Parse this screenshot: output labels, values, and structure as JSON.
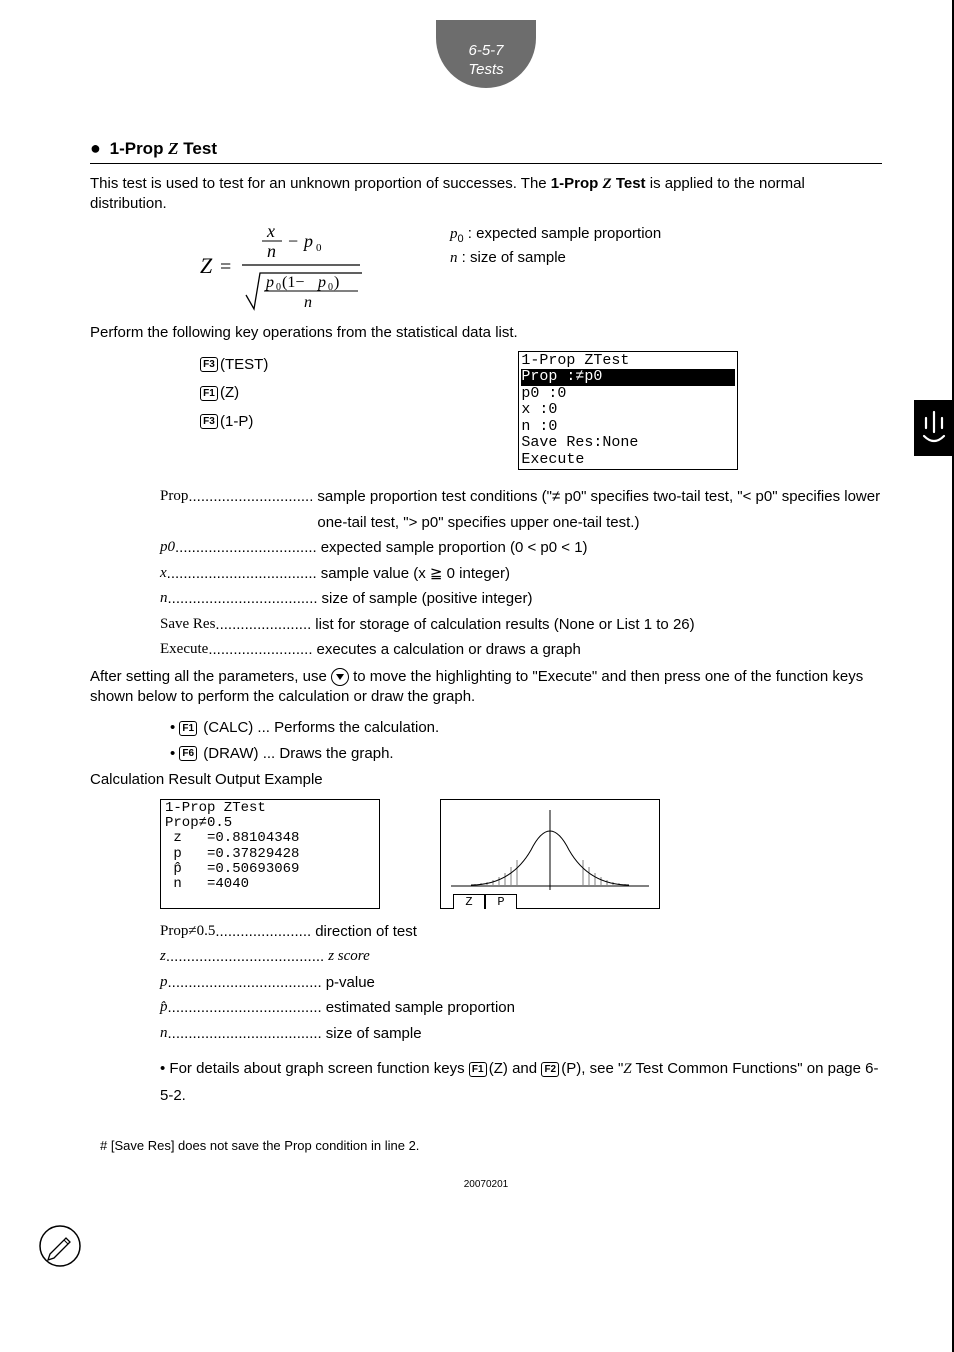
{
  "header": {
    "line1": "6-5-7",
    "line2": "Tests"
  },
  "section": {
    "bullet": "●",
    "title_prefix": "1-Prop ",
    "title_z": "Z",
    "title_suffix": " Test"
  },
  "intro": {
    "p1a": "This test is used to test for an unknown proportion of successes. The ",
    "p1b": "1-Prop ",
    "p1z": "Z",
    "p1c": " Test",
    "p1d": " is applied to the normal distribution."
  },
  "formula_tex": "Z = ( x/n − p0 ) / sqrt( p0(1 − p0) / n )",
  "var_defs": {
    "p0_label": "p",
    "p0_sub": "0",
    "p0_desc": " : expected sample proportion",
    "n_label": "n",
    "n_desc": "  : size of sample"
  },
  "perform": "Perform the following key operations from the statistical data list.",
  "keyops": [
    {
      "key": "F3",
      "label": "(TEST)"
    },
    {
      "key": "F1",
      "label": "(Z)"
    },
    {
      "key": "F3",
      "label": "(1-P)"
    }
  ],
  "lcd_input": {
    "l1": "1-Prop ZTest",
    "l2": "Prop    :≠p0",
    "l3": "p0      :0",
    "l4": "x       :0",
    "l5": "n       :0",
    "l6": "Save Res:None",
    "l7": "Execute"
  },
  "params": [
    {
      "label": "Prop",
      "dots": "..............................",
      "desc": "sample proportion test conditions (\"≠ p0\" specifies two-tail test, \"< p0\" specifies lower one-tail test, \"> p0\" specifies upper one-tail test.)",
      "italic_label": false
    },
    {
      "label": "p0",
      "dots": "..................................",
      "desc": "expected sample proportion (0 < p0 < 1)",
      "italic_label": true
    },
    {
      "label": "x",
      "dots": "....................................",
      "desc": "sample value (x ≧ 0 integer)",
      "italic_label": true
    },
    {
      "label": "n",
      "dots": "....................................",
      "desc": "size of sample (positive integer)",
      "italic_label": true
    },
    {
      "label": "Save Res",
      "dots": ".......................",
      "desc": "list for storage of calculation results (None or List 1 to 26)",
      "italic_label": false
    },
    {
      "label": "Execute",
      "dots": ".........................",
      "desc": "executes a calculation or draws a graph",
      "italic_label": false
    }
  ],
  "after_para": "After setting all the parameters, use  ",
  "after_para2": "  to move the highlighting to \"Execute\" and then press one of the function keys shown below to perform the calculation or draw the graph.",
  "exec_ops": [
    {
      "key": "F1",
      "label": "(CALC) ... Performs the calculation."
    },
    {
      "key": "F6",
      "label": "(DRAW) ... Draws the graph."
    }
  ],
  "calc_result_heading": "Calculation Result Output Example",
  "lcd_result": "1-Prop ZTest\nProp≠0.5\n z   =0.88104348\n p   =0.37829428\n p̂   =0.50693069\n n   =4040",
  "graph_tabs": {
    "t1": "Z",
    "t2": "P"
  },
  "results": [
    {
      "label": "Prop≠0.5",
      "dots": ".......................",
      "desc": "direction of test",
      "italic_label": false
    },
    {
      "label": "z",
      "dots": "......................................",
      "desc": "z score",
      "italic_label": true,
      "italic_desc": true
    },
    {
      "label": "p",
      "dots": ".....................................",
      "desc": "p-value",
      "italic_label": true
    },
    {
      "label": "p̂",
      "dots": ".....................................",
      "desc": "estimated sample proportion",
      "italic_label": true
    },
    {
      "label": "n",
      "dots": ".....................................",
      "desc": "size of sample",
      "italic_label": true
    }
  ],
  "details_note_a": "For details about graph screen function keys ",
  "details_note_b": "(Z) and ",
  "details_note_c": "(P), see \"",
  "details_note_z": "Z",
  "details_note_d": " Test Common Functions\" on page 6-5-2.",
  "details_keys": {
    "k1": "F1",
    "k2": "F2"
  },
  "footnote": "# [Save Res] does not save the Prop condition in line 2.",
  "page_num": "20070201",
  "colors": {
    "badge": "#6d6d6d",
    "fg": "#000000",
    "bg": "#ffffff"
  }
}
